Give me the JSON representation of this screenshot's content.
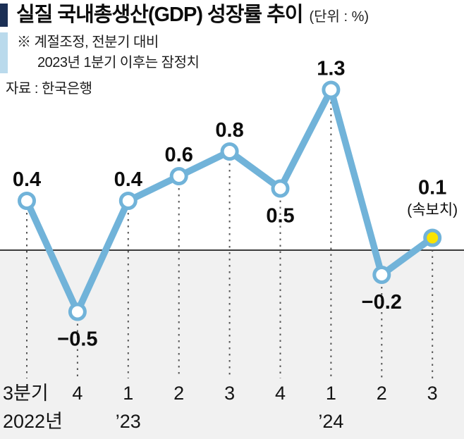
{
  "header": {
    "title": "실질 국내총생산(GDP) 성장률 추이",
    "unit": "(단위 : %)",
    "note_line1": "※  계절조정, 전분기 대비",
    "note_line2": "2023년 1분기 이후는 잠정치",
    "source": "자료 : 한국은행"
  },
  "chart_data": {
    "type": "line",
    "title": "실질 국내총생산(GDP) 성장률 추이",
    "unit": "%",
    "x": [
      "2022 Q3",
      "2022 Q4",
      "2023 Q1",
      "2023 Q2",
      "2023 Q3",
      "2023 Q4",
      "2024 Q1",
      "2024 Q2",
      "2024 Q3"
    ],
    "values": [
      0.4,
      -0.5,
      0.4,
      0.6,
      0.8,
      0.5,
      1.3,
      -0.2,
      0.1
    ],
    "point_labels": [
      "0.4",
      "−0.5",
      "0.4",
      "0.6",
      "0.8",
      "0.5",
      "1.3",
      "−0.2",
      "0.1"
    ],
    "label_positions": [
      "above",
      "below",
      "above",
      "above",
      "above",
      "below",
      "above",
      "below",
      "above"
    ],
    "last_point_annotation": "(속보치)",
    "x_tick_labels": [
      "3분기",
      "4",
      "1",
      "2",
      "3",
      "4",
      "1",
      "2",
      "3"
    ],
    "x_sub_labels": [
      {
        "index": 0,
        "label": "2022년"
      },
      {
        "index": 2,
        "label": "’23"
      },
      {
        "index": 6,
        "label": "’24"
      }
    ],
    "ylim": [
      -0.8,
      1.6
    ],
    "baseline": 0,
    "grid": "dashed-vertical-guides",
    "legend": "none",
    "colors": {
      "line": "#71b3d9",
      "point_fill": "#ffffff",
      "last_point_fill": "#f9e400",
      "below_zero_band": "#f1f1f1",
      "baseline": "#3c3c3c",
      "guide": "#555555"
    }
  }
}
